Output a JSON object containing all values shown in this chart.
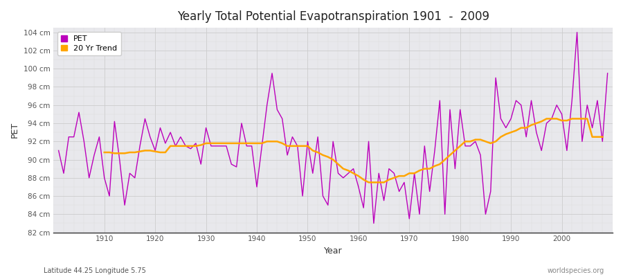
{
  "title": "Yearly Total Potential Evapotranspiration 1901  -  2009",
  "xlabel": "Year",
  "ylabel": "PET",
  "subtitle_left": "Latitude 44.25 Longitude 5.75",
  "subtitle_right": "worldspecies.org",
  "pet_color": "#bb00bb",
  "trend_color": "#ffa500",
  "fig_bg_color": "#ffffff",
  "plot_bg_color": "#e8e8ec",
  "years": [
    1901,
    1902,
    1903,
    1904,
    1905,
    1906,
    1907,
    1908,
    1909,
    1910,
    1911,
    1912,
    1913,
    1914,
    1915,
    1916,
    1917,
    1918,
    1919,
    1920,
    1921,
    1922,
    1923,
    1924,
    1925,
    1926,
    1927,
    1928,
    1929,
    1930,
    1931,
    1932,
    1933,
    1934,
    1935,
    1936,
    1937,
    1938,
    1939,
    1940,
    1941,
    1942,
    1943,
    1944,
    1945,
    1946,
    1947,
    1948,
    1949,
    1950,
    1951,
    1952,
    1953,
    1954,
    1955,
    1956,
    1957,
    1958,
    1959,
    1960,
    1961,
    1962,
    1963,
    1964,
    1965,
    1966,
    1967,
    1968,
    1969,
    1970,
    1971,
    1972,
    1973,
    1974,
    1975,
    1976,
    1977,
    1978,
    1979,
    1980,
    1981,
    1982,
    1983,
    1984,
    1985,
    1986,
    1987,
    1988,
    1989,
    1990,
    1991,
    1992,
    1993,
    1994,
    1995,
    1996,
    1997,
    1998,
    1999,
    2000,
    2001,
    2002,
    2003,
    2004,
    2005,
    2006,
    2007,
    2008,
    2009
  ],
  "pet_values": [
    91.0,
    88.5,
    92.5,
    92.5,
    95.2,
    92.0,
    88.0,
    90.5,
    92.5,
    88.0,
    86.0,
    94.2,
    90.0,
    85.0,
    88.5,
    88.0,
    91.5,
    94.5,
    92.5,
    91.0,
    93.5,
    91.8,
    93.0,
    91.5,
    92.5,
    91.5,
    91.2,
    91.8,
    89.5,
    93.5,
    91.5,
    91.5,
    91.5,
    91.5,
    89.5,
    89.2,
    94.0,
    91.5,
    91.5,
    87.0,
    91.5,
    96.0,
    99.5,
    95.5,
    94.5,
    90.5,
    92.5,
    91.5,
    86.0,
    92.0,
    88.5,
    92.5,
    86.0,
    85.0,
    92.0,
    88.5,
    88.0,
    88.5,
    89.0,
    87.0,
    84.7,
    92.0,
    83.0,
    88.5,
    85.5,
    89.0,
    88.5,
    86.5,
    87.5,
    83.5,
    88.5,
    84.0,
    91.5,
    86.5,
    91.0,
    96.5,
    84.0,
    95.5,
    89.0,
    95.5,
    91.5,
    91.5,
    92.0,
    90.5,
    84.0,
    86.5,
    99.0,
    94.5,
    93.5,
    94.5,
    96.5,
    96.0,
    92.5,
    96.5,
    93.0,
    91.0,
    94.0,
    94.5,
    96.0,
    95.0,
    91.0,
    96.5,
    104.0,
    92.0,
    96.0,
    93.5,
    96.5,
    92.0,
    99.5
  ],
  "trend_values": [
    null,
    null,
    null,
    null,
    null,
    null,
    null,
    null,
    null,
    90.8,
    90.8,
    90.7,
    90.7,
    90.7,
    90.8,
    90.8,
    90.9,
    91.0,
    91.0,
    90.9,
    90.8,
    90.8,
    91.5,
    91.5,
    91.5,
    91.5,
    91.5,
    91.5,
    91.6,
    91.8,
    91.8,
    91.8,
    91.8,
    91.8,
    91.8,
    91.8,
    91.8,
    91.8,
    91.8,
    91.8,
    91.8,
    92.0,
    92.0,
    92.0,
    91.8,
    91.5,
    91.5,
    91.5,
    91.5,
    91.5,
    91.0,
    90.8,
    90.5,
    90.3,
    90.0,
    89.5,
    89.0,
    88.8,
    88.5,
    88.2,
    87.8,
    87.5,
    87.5,
    87.5,
    87.5,
    87.8,
    88.0,
    88.2,
    88.2,
    88.5,
    88.5,
    88.8,
    89.0,
    89.0,
    89.3,
    89.5,
    90.0,
    90.5,
    91.0,
    91.5,
    92.0,
    92.0,
    92.2,
    92.2,
    92.0,
    91.8,
    92.0,
    92.5,
    92.8,
    93.0,
    93.2,
    93.5,
    93.5,
    93.8,
    94.0,
    94.2,
    94.5,
    94.5,
    94.5,
    94.3,
    94.3,
    94.5,
    94.5,
    94.5,
    94.5,
    92.5,
    92.5,
    92.5,
    null
  ],
  "ylim": [
    82,
    104.5
  ],
  "yticks": [
    82,
    84,
    86,
    88,
    90,
    92,
    94,
    96,
    98,
    100,
    102,
    104
  ],
  "xlim": [
    1900,
    2010
  ],
  "xticks": [
    1910,
    1920,
    1930,
    1940,
    1950,
    1960,
    1970,
    1980,
    1990,
    2000
  ]
}
